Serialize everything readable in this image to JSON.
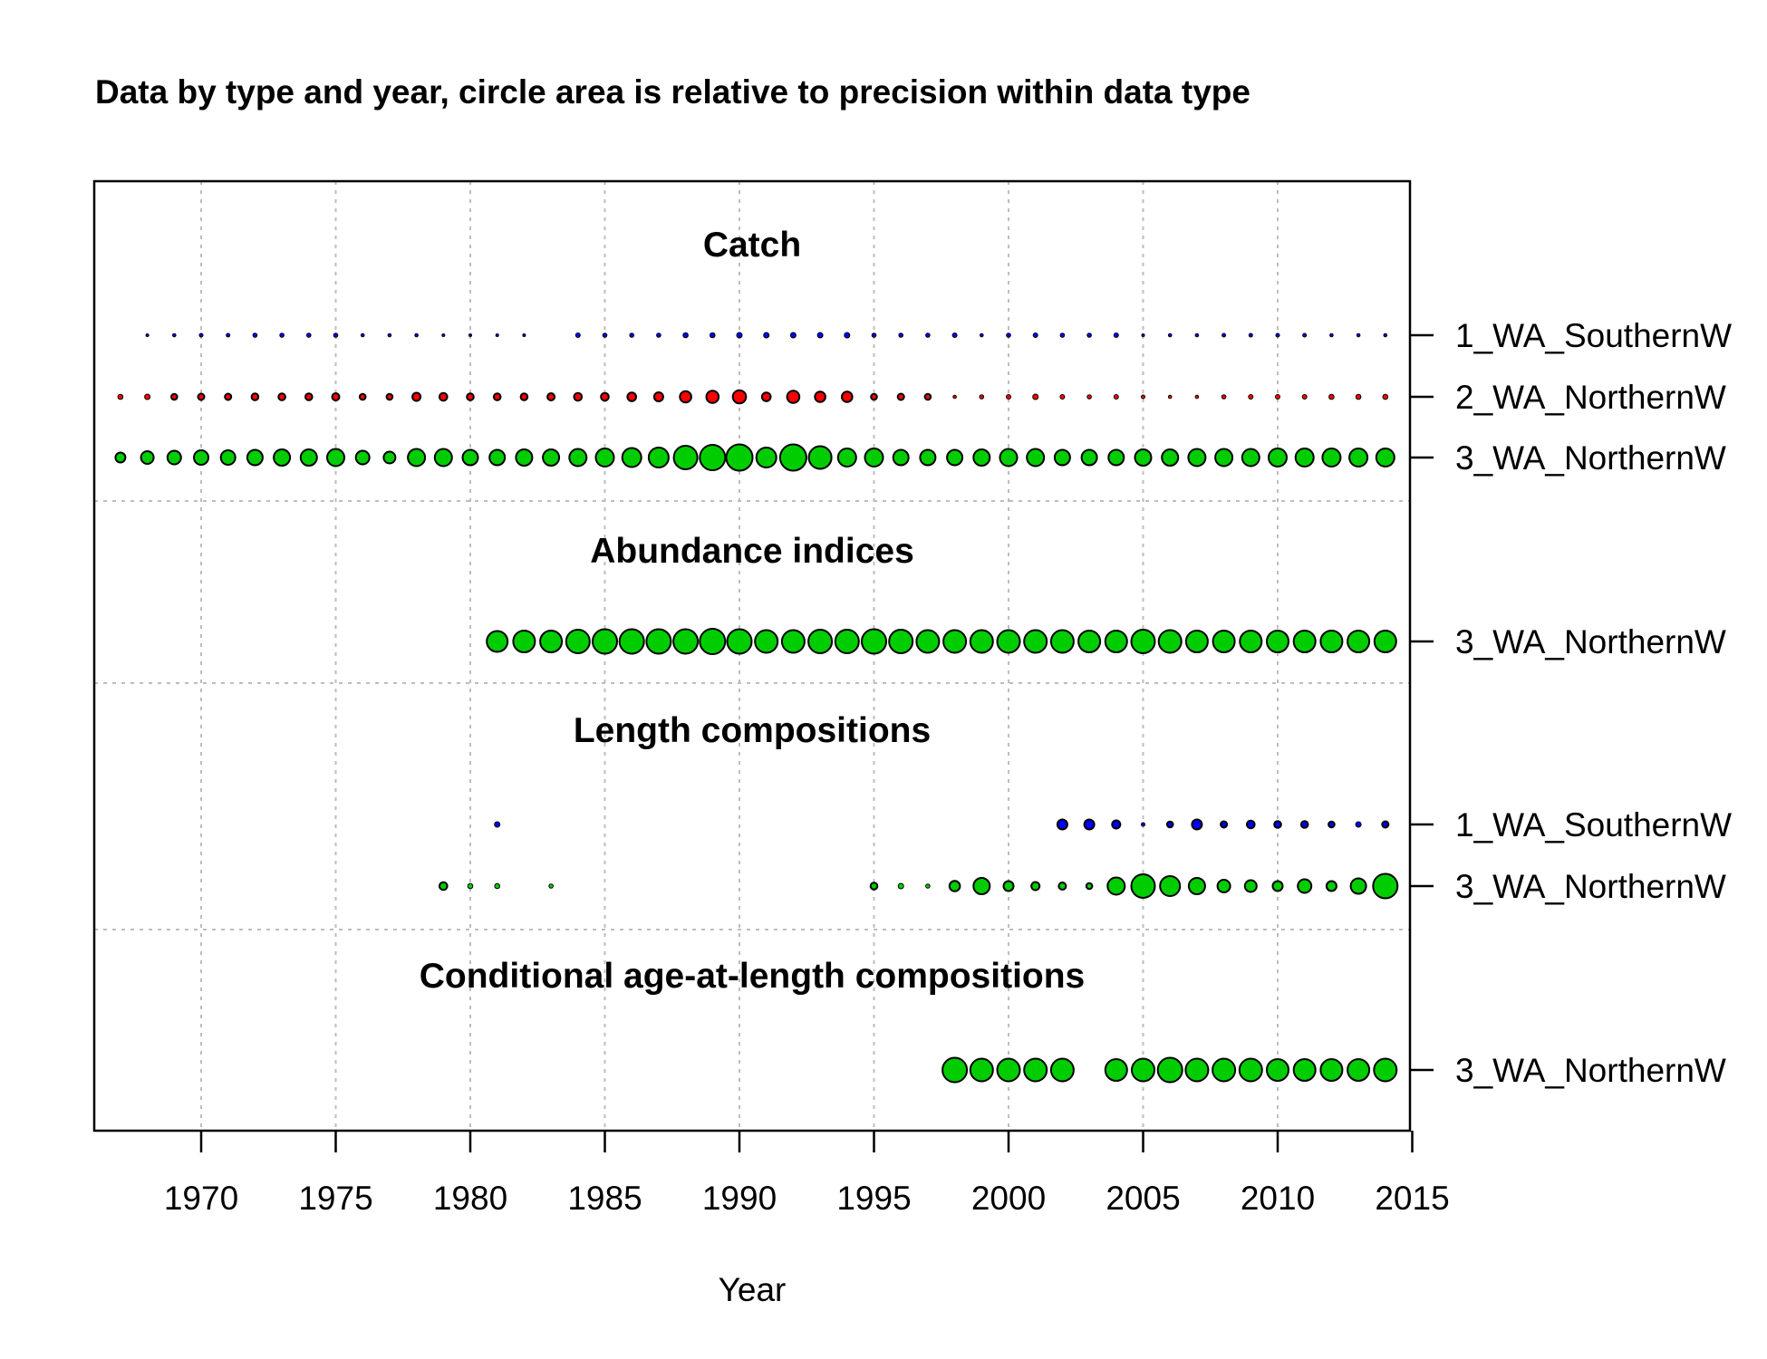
{
  "chart_data": {
    "type": "scatter",
    "title": "Data by type and year, circle area is relative to precision within data type",
    "xlabel": "Year",
    "xlim": [
      1966,
      2015
    ],
    "xticks": [
      1970,
      1975,
      1980,
      1985,
      1990,
      1995,
      2000,
      2005,
      2010,
      2015
    ],
    "grid": true,
    "fleet_colors": {
      "1_WA_SouthernW": "#0000ff",
      "2_WA_NorthernW": "#ff0000",
      "3_WA_NorthernW": "#00cd00"
    },
    "sections": [
      {
        "title": "Catch",
        "rows": [
          {
            "label": "1_WA_SouthernW",
            "fleet": "1_WA_SouthernW",
            "years": [
              1968,
              1969,
              1970,
              1971,
              1972,
              1973,
              1974,
              1975,
              1976,
              1977,
              1978,
              1979,
              1980,
              1981,
              1982,
              1984,
              1985,
              1986,
              1987,
              1988,
              1989,
              1990,
              1991,
              1992,
              1993,
              1994,
              1995,
              1996,
              1997,
              1998,
              1999,
              2000,
              2001,
              2002,
              2003,
              2004,
              2005,
              2006,
              2007,
              2008,
              2009,
              2010,
              2011,
              2012,
              2013,
              2014
            ],
            "sizes": [
              1.5,
              1.8,
              2,
              2,
              2.3,
              2.3,
              2.3,
              2.3,
              1.8,
              1.8,
              1.8,
              1.5,
              1.5,
              1.5,
              1.5,
              2.5,
              2.3,
              2.3,
              2.3,
              2.8,
              2.8,
              3,
              3,
              3,
              3,
              3,
              2.3,
              2.3,
              2.3,
              2.5,
              1.8,
              2.3,
              2.5,
              2.3,
              2.3,
              2.5,
              1.5,
              1.8,
              1.8,
              2,
              2,
              2,
              2,
              1.8,
              1.8,
              1.8
            ]
          },
          {
            "label": "2_WA_NorthernW",
            "fleet": "2_WA_NorthernW",
            "years": [
              1967,
              1968,
              1969,
              1970,
              1971,
              1972,
              1973,
              1974,
              1975,
              1976,
              1977,
              1978,
              1979,
              1980,
              1981,
              1982,
              1983,
              1984,
              1985,
              1986,
              1987,
              1988,
              1989,
              1990,
              1991,
              1992,
              1993,
              1994,
              1995,
              1996,
              1997,
              1998,
              1999,
              2000,
              2001,
              2002,
              2003,
              2004,
              2005,
              2006,
              2007,
              2008,
              2009,
              2010,
              2011,
              2012,
              2013,
              2014
            ],
            "sizes": [
              2.8,
              3,
              3.3,
              3.5,
              3.5,
              3.8,
              3.8,
              3.8,
              4,
              3.3,
              3.3,
              4.5,
              4.3,
              3.8,
              3.8,
              3.8,
              4,
              4.3,
              4.3,
              4.8,
              5,
              6.3,
              6.8,
              7.3,
              4.8,
              6.8,
              5.8,
              5.8,
              3.3,
              3.5,
              3.3,
              1.8,
              2.3,
              2.5,
              3,
              2.5,
              2.3,
              2.5,
              2,
              1.8,
              1.8,
              2.3,
              2.5,
              2.5,
              2.5,
              2.8,
              2.8,
              2.8
            ]
          },
          {
            "label": "3_WA_NorthernW",
            "fleet": "3_WA_NorthernW",
            "years": [
              1967,
              1968,
              1969,
              1970,
              1971,
              1972,
              1973,
              1974,
              1975,
              1976,
              1977,
              1978,
              1979,
              1980,
              1981,
              1982,
              1983,
              1984,
              1985,
              1986,
              1987,
              1988,
              1989,
              1990,
              1991,
              1992,
              1993,
              1994,
              1995,
              1996,
              1997,
              1998,
              1999,
              2000,
              2001,
              2002,
              2003,
              2004,
              2005,
              2006,
              2007,
              2008,
              2009,
              2010,
              2011,
              2012,
              2013,
              2014
            ],
            "sizes": [
              5.5,
              7,
              7.5,
              8,
              8,
              8.5,
              9,
              9,
              9.5,
              7.5,
              6.5,
              9.5,
              9.5,
              8.5,
              8.5,
              9,
              9,
              9.5,
              10,
              10.5,
              11,
              13,
              14,
              14.5,
              11,
              14.5,
              12.5,
              10,
              10,
              8.5,
              8.5,
              8.5,
              9,
              9.5,
              9.5,
              8.5,
              8.5,
              8.5,
              9,
              9,
              9.5,
              9.5,
              9.5,
              10,
              10,
              10,
              10,
              10
            ]
          }
        ]
      },
      {
        "title": "Abundance indices",
        "rows": [
          {
            "label": "3_WA_NorthernW",
            "fleet": "3_WA_NorthernW",
            "years": [
              1981,
              1982,
              1983,
              1984,
              1985,
              1986,
              1987,
              1988,
              1989,
              1990,
              1991,
              1992,
              1993,
              1994,
              1995,
              1996,
              1997,
              1998,
              1999,
              2000,
              2001,
              2002,
              2003,
              2004,
              2005,
              2006,
              2007,
              2008,
              2009,
              2010,
              2011,
              2012,
              2013,
              2014
            ],
            "sizes": [
              11.5,
              12,
              12,
              13,
              13.5,
              13.5,
              13.5,
              13.5,
              14,
              13.5,
              12.5,
              12.5,
              13,
              13,
              13.5,
              13,
              12.5,
              12.5,
              12.5,
              12.5,
              12.5,
              12.5,
              12,
              12,
              13,
              12.5,
              12,
              12,
              12,
              12,
              12,
              12,
              12,
              12
            ]
          }
        ]
      },
      {
        "title": "Length compositions",
        "rows": [
          {
            "label": "1_WA_SouthernW",
            "fleet": "1_WA_SouthernW",
            "years": [
              1981,
              2002,
              2003,
              2004,
              2005,
              2006,
              2007,
              2008,
              2009,
              2010,
              2011,
              2012,
              2013,
              2014
            ],
            "sizes": [
              3,
              5.5,
              5.5,
              4.5,
              2,
              3.3,
              5.5,
              3.5,
              4.3,
              3.8,
              3.8,
              3.3,
              3,
              3.5
            ]
          },
          {
            "label": "3_WA_NorthernW",
            "fleet": "3_WA_NorthernW",
            "years": [
              1979,
              1980,
              1981,
              1983,
              1995,
              1996,
              1997,
              1998,
              1999,
              2000,
              2001,
              2002,
              2003,
              2004,
              2005,
              2006,
              2007,
              2008,
              2009,
              2010,
              2011,
              2012,
              2013,
              2014
            ],
            "sizes": [
              4.3,
              2.8,
              2.8,
              2.3,
              3.8,
              3,
              2.3,
              5.8,
              9,
              5.5,
              4.5,
              4,
              3.3,
              9.5,
              13,
              11,
              9,
              7,
              6.5,
              5.5,
              7.5,
              5.5,
              8.5,
              13.5
            ]
          }
        ]
      },
      {
        "title": "Conditional age-at-length compositions",
        "rows": [
          {
            "label": "3_WA_NorthernW",
            "fleet": "3_WA_NorthernW",
            "years": [
              1998,
              1999,
              2000,
              2001,
              2002,
              2004,
              2005,
              2006,
              2007,
              2008,
              2009,
              2010,
              2011,
              2012,
              2013,
              2014
            ],
            "sizes": [
              13.5,
              12.5,
              12.5,
              12.5,
              12.5,
              12,
              12.5,
              13.5,
              12.5,
              12.5,
              12.5,
              12,
              12,
              12,
              12,
              12.5
            ]
          }
        ]
      }
    ]
  }
}
